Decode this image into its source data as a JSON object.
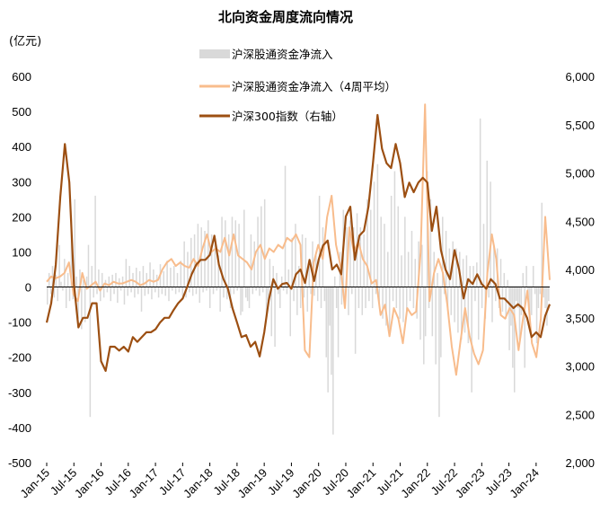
{
  "chart_data": {
    "type": "bar",
    "title": "北向资金周度流向情况",
    "left_axis_unit": "(亿元)",
    "ylim_left": [
      -500,
      600
    ],
    "yticks_left": [
      "600",
      "500",
      "400",
      "300",
      "200",
      "100",
      "0",
      "-100",
      "-200",
      "-300",
      "-400",
      "-500"
    ],
    "ylim_right": [
      2000,
      6000
    ],
    "yticks_right": [
      "6,000",
      "5,500",
      "5,000",
      "4,500",
      "4,000",
      "3,500",
      "3,000",
      "2,500",
      "2,000"
    ],
    "x_range": [
      "2015-01",
      "2024-05"
    ],
    "x_ticks": [
      "Jan-15",
      "Jul-15",
      "Jan-16",
      "Jul-16",
      "Jan-17",
      "Jul-17",
      "Jan-18",
      "Jul-18",
      "Jan-19",
      "Jul-19",
      "Jan-20",
      "Jul-20",
      "Jan-21",
      "Jul-21",
      "Jan-22",
      "Jul-22",
      "Jan-23",
      "Jul-23",
      "Jan-24"
    ],
    "legend_position": "top-center",
    "colors": {
      "net_inflow": "#d9d9d9",
      "avg4w": "#f8bc8c",
      "index": "#9c4f12"
    },
    "series": [
      {
        "name": "沪深股通资金净流入",
        "kind": "bar",
        "axis": "left",
        "sampling": "weekly",
        "values": [
          -50,
          40,
          -20,
          60,
          -30,
          35,
          -40,
          120,
          15,
          -10,
          80,
          -60,
          40,
          -40,
          200,
          -35,
          250,
          30,
          -90,
          50,
          -120,
          20,
          -100,
          30,
          120,
          -370,
          60,
          -30,
          260,
          -20,
          50,
          -40,
          40,
          -30,
          20,
          -15,
          30,
          -40,
          35,
          -20,
          40,
          -45,
          25,
          -10,
          30,
          -50,
          80,
          -25,
          60,
          -15,
          40,
          -30,
          55,
          -20,
          45,
          -70,
          60,
          -25,
          40,
          -20,
          70,
          -35,
          50,
          -15,
          35,
          -30,
          65,
          -20,
          45,
          -25,
          75,
          -40,
          55,
          -10,
          60,
          -20,
          40,
          -15,
          75,
          -25,
          130,
          -30,
          100,
          -15,
          140,
          -25,
          150,
          -20,
          180,
          -45,
          170,
          -15,
          160,
          -10,
          190,
          -60,
          150,
          -20,
          120,
          -10,
          90,
          -70,
          200,
          -30,
          190,
          -35,
          150,
          -60,
          200,
          -20,
          190,
          -10,
          180,
          -80,
          -70,
          220,
          -30,
          -40,
          -60,
          150,
          -20,
          130,
          -10,
          200,
          -25,
          230,
          -15,
          250,
          -90,
          -40,
          80,
          -140,
          60,
          -170,
          40,
          -20,
          -60,
          30,
          -10,
          345,
          -20,
          50,
          -140,
          140,
          -40,
          180,
          -80,
          60,
          -60,
          150,
          -30,
          140,
          -70,
          60,
          -20,
          130,
          -25,
          90,
          -40,
          260,
          -60,
          170,
          -40,
          -200,
          -300,
          -110,
          -250,
          -420,
          30,
          -60,
          -200,
          100,
          -50,
          220,
          -30,
          170,
          -80,
          190,
          -20,
          170,
          -190,
          210,
          -60,
          170,
          -80,
          150,
          -60,
          250,
          -40,
          220,
          -60,
          300,
          -20,
          350,
          -50,
          200,
          -90,
          180,
          -110,
          100,
          -120,
          260,
          -40,
          330,
          -60,
          230,
          -90,
          90,
          -100,
          200,
          -80,
          100,
          -40,
          160,
          -60,
          80,
          -90,
          130,
          -150,
          120,
          -220,
          -140,
          330,
          -60,
          250,
          -140,
          100,
          -220,
          40,
          -370,
          -200,
          200,
          -20,
          160,
          -60,
          110,
          -80,
          130,
          -100,
          110,
          -130,
          100,
          -150,
          80,
          -130,
          90,
          -160,
          60,
          -300,
          60,
          -40,
          70,
          -150,
          480,
          -60,
          180,
          -90,
          360,
          -30,
          300,
          -100,
          120,
          -40,
          110,
          -60,
          80,
          -70,
          40,
          -90,
          20,
          -180,
          -110,
          -230,
          -300,
          -40,
          -60,
          -150,
          -80,
          40,
          -230,
          60,
          -30,
          -120,
          -80,
          60,
          -20,
          -160,
          -60,
          -20,
          240,
          -30,
          -60,
          -110,
          -40
        ]
      },
      {
        "name": "沪深股通资金净流入（4周平均）",
        "kind": "line",
        "axis": "left",
        "sampling": "monthly",
        "values": [
          15,
          30,
          25,
          30,
          40,
          70,
          -20,
          -40,
          40,
          -5,
          5,
          15,
          -10,
          10,
          5,
          15,
          10,
          10,
          15,
          20,
          15,
          5,
          10,
          20,
          15,
          20,
          50,
          70,
          80,
          60,
          70,
          60,
          55,
          80,
          60,
          110,
          150,
          100,
          110,
          100,
          140,
          90,
          150,
          90,
          80,
          70,
          50,
          100,
          120,
          80,
          110,
          100,
          120,
          110,
          140,
          130,
          150,
          120,
          -180,
          -200,
          70,
          120,
          80,
          200,
          260,
          120,
          60,
          -60,
          170,
          100,
          130,
          80,
          60,
          10,
          20,
          -80,
          -50,
          -140,
          -60,
          -90,
          -160,
          -60,
          -80,
          -70,
          100,
          520,
          -40,
          40,
          80,
          40,
          -50,
          -170,
          -250,
          -150,
          -60,
          -140,
          -190,
          -220,
          -180,
          40,
          150,
          80,
          -80,
          -90,
          -60,
          -80,
          -180,
          -90,
          -10,
          -160,
          -200,
          -90,
          200,
          20
        ]
      },
      {
        "name": "沪深300指数（右轴）",
        "kind": "line",
        "axis": "right",
        "sampling": "monthly",
        "values": [
          3450,
          3650,
          4050,
          4750,
          5300,
          4900,
          3850,
          3400,
          3500,
          3500,
          3650,
          3650,
          3050,
          2950,
          3200,
          3200,
          3160,
          3200,
          3150,
          3300,
          3250,
          3300,
          3350,
          3350,
          3380,
          3450,
          3500,
          3500,
          3580,
          3650,
          3700,
          3820,
          3950,
          4050,
          4100,
          4100,
          4150,
          4350,
          4050,
          3900,
          3800,
          3600,
          3450,
          3300,
          3320,
          3200,
          3250,
          3100,
          3350,
          3680,
          3900,
          3800,
          3850,
          3860,
          3800,
          3950,
          4000,
          3860,
          4100,
          3880,
          4100,
          4250,
          4300,
          4000,
          4050,
          3950,
          4550,
          4650,
          4100,
          4350,
          4400,
          4650,
          5100,
          5600,
          5250,
          5100,
          5050,
          5300,
          5100,
          4750,
          4900,
          4800,
          4900,
          4950,
          4900,
          4400,
          4650,
          4200,
          4000,
          3900,
          4200,
          4000,
          3700,
          3900,
          3850,
          3950,
          3850,
          3800,
          3900,
          3850,
          3700,
          3700,
          3650,
          3600,
          3640,
          3600,
          3500,
          3300,
          3350,
          3300,
          3520,
          3640
        ]
      }
    ]
  }
}
